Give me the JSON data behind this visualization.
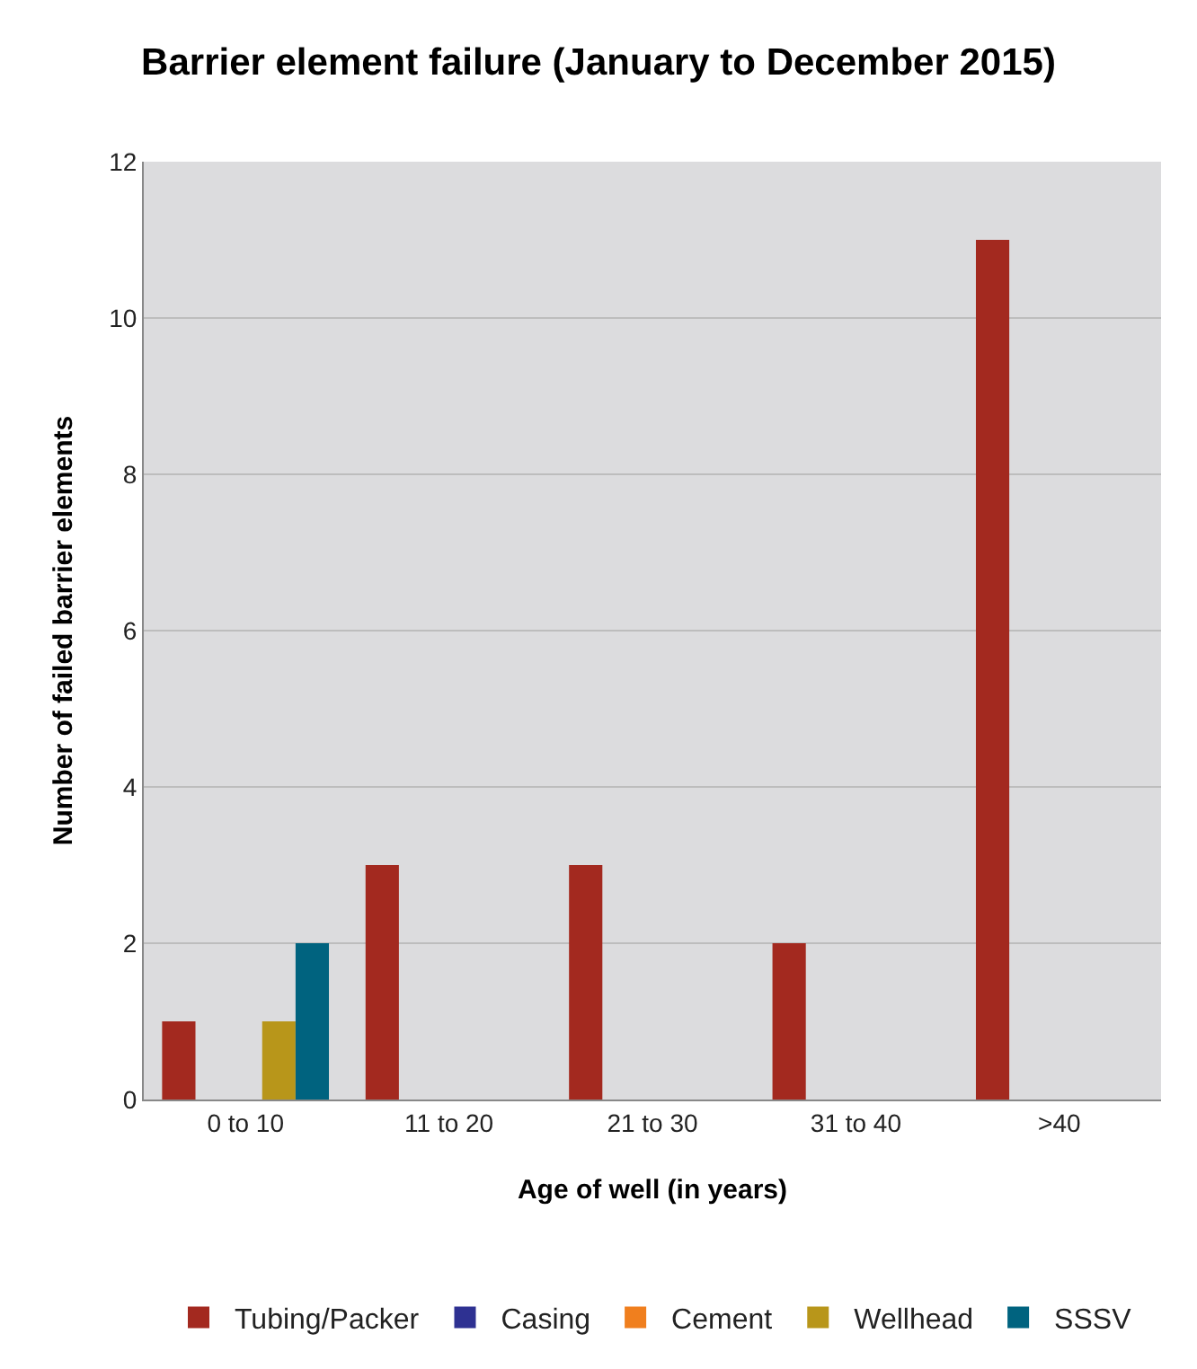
{
  "chart_data": {
    "type": "bar",
    "title": "Barrier element failure (January to December 2015)",
    "xlabel": "Age of well (in years)",
    "ylabel": "Number of failed barrier elements",
    "categories": [
      "0 to 10",
      "11 to 20",
      "21 to 30",
      "31 to 40",
      ">40"
    ],
    "series": [
      {
        "name": "Tubing/Packer",
        "color": "#a3291f",
        "values": [
          1,
          3,
          3,
          2,
          11
        ]
      },
      {
        "name": "Casing",
        "color": "#2e3192",
        "values": [
          0,
          0,
          0,
          0,
          0
        ]
      },
      {
        "name": "Cement",
        "color": "#f07f1e",
        "values": [
          0,
          0,
          0,
          0,
          0
        ]
      },
      {
        "name": "Wellhead",
        "color": "#b8961a",
        "values": [
          1,
          0,
          0,
          0,
          0
        ]
      },
      {
        "name": "SSSV",
        "color": "#00637f",
        "values": [
          2,
          0,
          0,
          0,
          0
        ]
      }
    ],
    "ylim": [
      0,
      12
    ],
    "yticks": [
      0,
      2,
      4,
      6,
      8,
      10,
      12
    ],
    "grid": "y",
    "legend": "bottom"
  }
}
